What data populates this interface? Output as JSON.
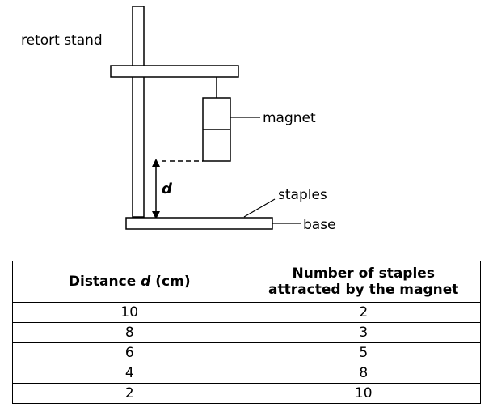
{
  "diagram": {
    "label_retort_stand": "retort stand",
    "label_magnet": "magnet",
    "label_staples": "staples",
    "label_base": "base",
    "label_distance": "d"
  },
  "table": {
    "col1_header_pre": "Distance ",
    "col1_header_var": "d",
    "col1_header_post": " (cm)",
    "col2_header_line1": "Number of staples",
    "col2_header_line2": "attracted by the magnet",
    "rows": [
      {
        "distance": "10",
        "staples": "2"
      },
      {
        "distance": "8",
        "staples": "3"
      },
      {
        "distance": "6",
        "staples": "5"
      },
      {
        "distance": "4",
        "staples": "8"
      },
      {
        "distance": "2",
        "staples": "10"
      }
    ]
  }
}
